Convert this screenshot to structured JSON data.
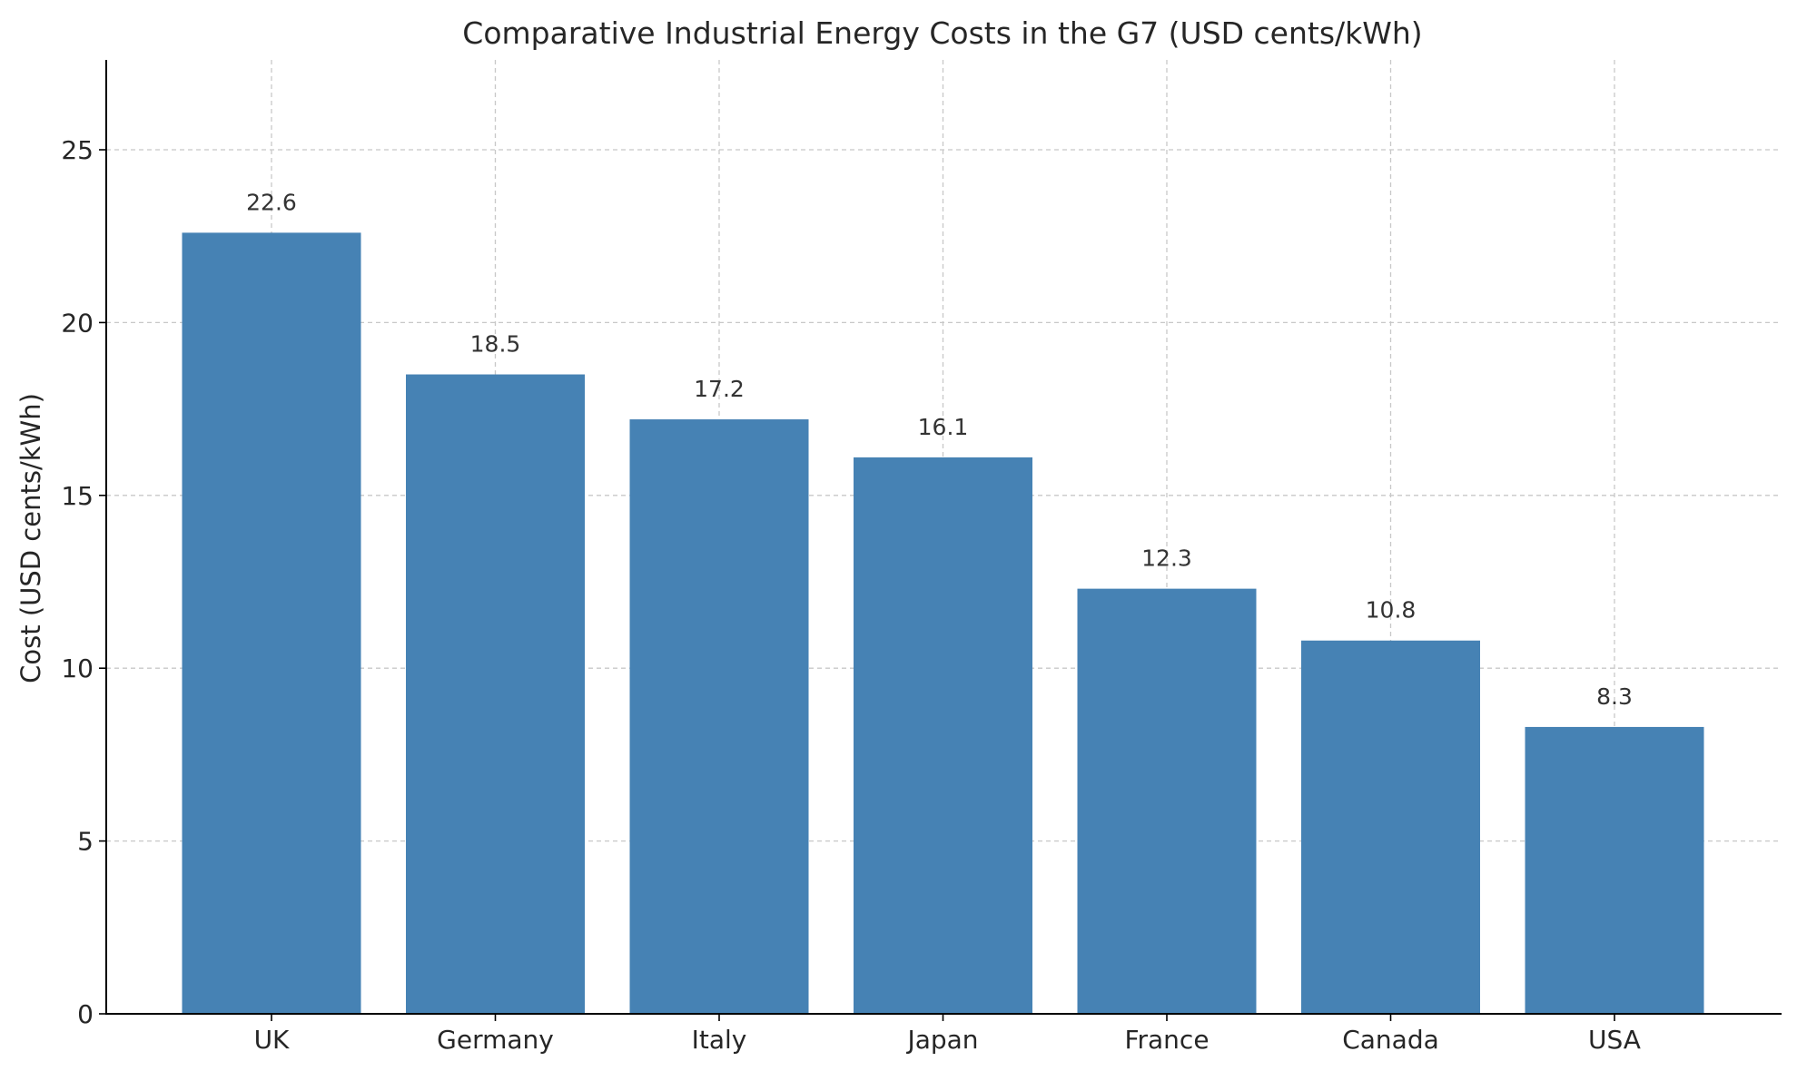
{
  "chart_data": {
    "type": "bar",
    "title": "Comparative Industrial Energy Costs in the G7 (USD cents/kWh)",
    "xlabel": "",
    "ylabel": "Cost (USD cents/kWh)",
    "categories": [
      "UK",
      "Germany",
      "Italy",
      "Japan",
      "France",
      "Canada",
      "USA"
    ],
    "values": [
      22.6,
      18.5,
      17.2,
      16.1,
      12.3,
      10.8,
      8.3
    ],
    "data_labels": [
      "22.6",
      "18.5",
      "17.2",
      "16.1",
      "12.3",
      "10.8",
      "8.3"
    ],
    "ylim": [
      0,
      27.6
    ],
    "yticks": [
      0,
      5,
      10,
      15,
      20,
      25
    ],
    "ytick_labels": [
      "0",
      "5",
      "10",
      "15",
      "20",
      "25"
    ],
    "grid": true,
    "bar_color": "#4682b4"
  }
}
